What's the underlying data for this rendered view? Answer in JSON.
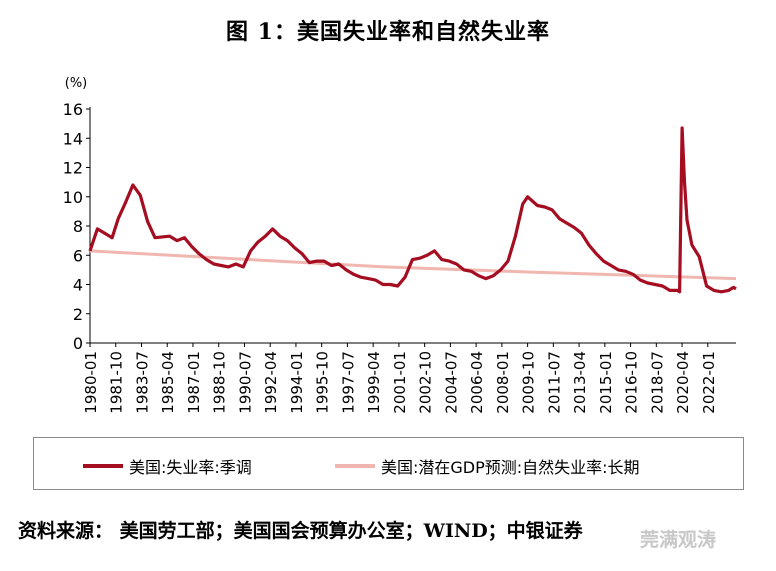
{
  "chart_data": {
    "type": "line",
    "title": "图 1：美国失业率和自然失业率",
    "yunit": "(%)",
    "ylim": [
      0,
      16
    ],
    "yticks": [
      0,
      2,
      4,
      6,
      8,
      10,
      12,
      14,
      16
    ],
    "xrange": [
      "1980-01",
      "2023-12"
    ],
    "xticks": [
      "1980-01",
      "1981-10",
      "1983-07",
      "1985-04",
      "1987-01",
      "1988-10",
      "1990-07",
      "1992-04",
      "1994-01",
      "1995-10",
      "1997-07",
      "1999-04",
      "2001-01",
      "2002-10",
      "2004-07",
      "2006-04",
      "2008-01",
      "2009-10",
      "2011-07",
      "2013-04",
      "2015-01",
      "2016-10",
      "2018-07",
      "2020-04",
      "2022-01"
    ],
    "grid": false,
    "legend_position": "bottom",
    "series": [
      {
        "name": "美国:失业率:季调",
        "color": "#a50d21",
        "points": [
          [
            "1980-01",
            6.3
          ],
          [
            "1980-07",
            7.8
          ],
          [
            "1981-01",
            7.5
          ],
          [
            "1981-07",
            7.2
          ],
          [
            "1981-12",
            8.5
          ],
          [
            "1982-06",
            9.6
          ],
          [
            "1982-12",
            10.8
          ],
          [
            "1983-06",
            10.1
          ],
          [
            "1983-12",
            8.3
          ],
          [
            "1984-06",
            7.2
          ],
          [
            "1985-06",
            7.3
          ],
          [
            "1985-12",
            7.0
          ],
          [
            "1986-06",
            7.2
          ],
          [
            "1986-12",
            6.6
          ],
          [
            "1987-06",
            6.1
          ],
          [
            "1987-12",
            5.7
          ],
          [
            "1988-06",
            5.4
          ],
          [
            "1988-12",
            5.3
          ],
          [
            "1989-06",
            5.2
          ],
          [
            "1989-12",
            5.4
          ],
          [
            "1990-06",
            5.2
          ],
          [
            "1990-12",
            6.3
          ],
          [
            "1991-06",
            6.9
          ],
          [
            "1991-12",
            7.3
          ],
          [
            "1992-06",
            7.8
          ],
          [
            "1992-12",
            7.3
          ],
          [
            "1993-06",
            7.0
          ],
          [
            "1993-12",
            6.5
          ],
          [
            "1994-06",
            6.1
          ],
          [
            "1994-12",
            5.5
          ],
          [
            "1995-06",
            5.6
          ],
          [
            "1995-12",
            5.6
          ],
          [
            "1996-06",
            5.3
          ],
          [
            "1996-12",
            5.4
          ],
          [
            "1997-06",
            5.0
          ],
          [
            "1997-12",
            4.7
          ],
          [
            "1998-06",
            4.5
          ],
          [
            "1998-12",
            4.4
          ],
          [
            "1999-06",
            4.3
          ],
          [
            "1999-12",
            4.0
          ],
          [
            "2000-06",
            4.0
          ],
          [
            "2000-12",
            3.9
          ],
          [
            "2001-06",
            4.5
          ],
          [
            "2001-12",
            5.7
          ],
          [
            "2002-06",
            5.8
          ],
          [
            "2002-12",
            6.0
          ],
          [
            "2003-06",
            6.3
          ],
          [
            "2003-12",
            5.7
          ],
          [
            "2004-06",
            5.6
          ],
          [
            "2004-12",
            5.4
          ],
          [
            "2005-06",
            5.0
          ],
          [
            "2005-12",
            4.9
          ],
          [
            "2006-06",
            4.6
          ],
          [
            "2006-12",
            4.4
          ],
          [
            "2007-06",
            4.6
          ],
          [
            "2007-12",
            5.0
          ],
          [
            "2008-06",
            5.6
          ],
          [
            "2008-12",
            7.3
          ],
          [
            "2009-06",
            9.5
          ],
          [
            "2009-10",
            10.0
          ],
          [
            "2010-06",
            9.4
          ],
          [
            "2010-12",
            9.3
          ],
          [
            "2011-06",
            9.1
          ],
          [
            "2011-12",
            8.5
          ],
          [
            "2012-06",
            8.2
          ],
          [
            "2012-12",
            7.9
          ],
          [
            "2013-06",
            7.5
          ],
          [
            "2013-12",
            6.7
          ],
          [
            "2014-06",
            6.1
          ],
          [
            "2014-12",
            5.6
          ],
          [
            "2015-06",
            5.3
          ],
          [
            "2015-12",
            5.0
          ],
          [
            "2016-06",
            4.9
          ],
          [
            "2016-12",
            4.7
          ],
          [
            "2017-06",
            4.3
          ],
          [
            "2017-12",
            4.1
          ],
          [
            "2018-06",
            4.0
          ],
          [
            "2018-12",
            3.9
          ],
          [
            "2019-06",
            3.6
          ],
          [
            "2019-12",
            3.6
          ],
          [
            "2020-02",
            3.5
          ],
          [
            "2020-04",
            14.7
          ],
          [
            "2020-06",
            11.0
          ],
          [
            "2020-08",
            8.4
          ],
          [
            "2020-12",
            6.7
          ],
          [
            "2021-06",
            5.9
          ],
          [
            "2021-12",
            3.9
          ],
          [
            "2022-06",
            3.6
          ],
          [
            "2022-12",
            3.5
          ],
          [
            "2023-06",
            3.6
          ],
          [
            "2023-10",
            3.8
          ],
          [
            "2023-12",
            3.7
          ]
        ]
      },
      {
        "name": "美国:潜在GDP预测:自然失业率:长期",
        "color": "#f0b6b0",
        "points": [
          [
            "1980-01",
            6.3
          ],
          [
            "1990-01",
            5.75
          ],
          [
            "2000-01",
            5.2
          ],
          [
            "2010-01",
            4.85
          ],
          [
            "2023-12",
            4.4
          ]
        ]
      }
    ]
  },
  "source": "资料来源：  美国劳工部；美国国会预算办公室；WIND；中银证券",
  "watermark": "莞满观涛"
}
